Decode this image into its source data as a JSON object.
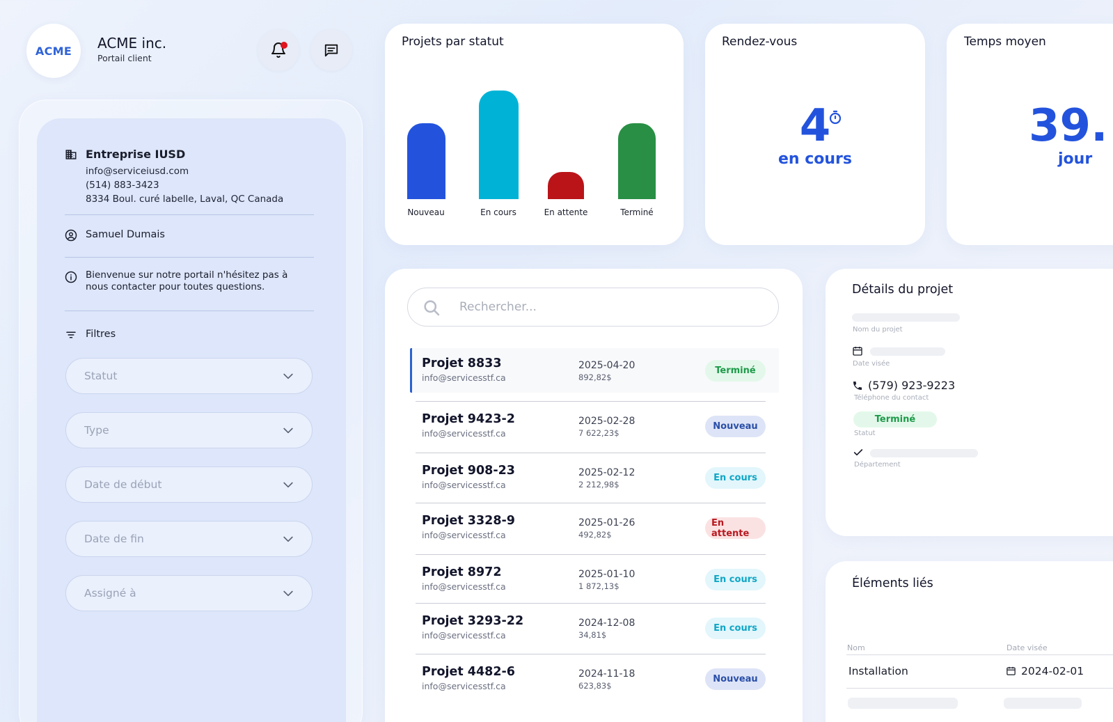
{
  "header": {
    "logo_text": "ACME",
    "company_name": "ACME inc.",
    "subtitle": "Portail client"
  },
  "sidebar": {
    "company": {
      "name": "Entreprise IUSD",
      "email": "info@serviceiusd.com",
      "phone": "(514) 883-3423",
      "address": "8334 Boul. curé labelle, Laval, QC Canada"
    },
    "user_name": "Samuel Dumais",
    "welcome_line1": "Bienvenue sur notre portail n'hésitez pas à",
    "welcome_line2": "nous contacter pour toutes questions.",
    "filters_label": "Filtres",
    "filters": [
      {
        "placeholder": "Statut"
      },
      {
        "placeholder": "Type"
      },
      {
        "placeholder": "Date de début"
      },
      {
        "placeholder": "Date de fin"
      },
      {
        "placeholder": "Assigné à"
      }
    ]
  },
  "status_card": {
    "title": "Projets par statut",
    "chart_data": {
      "type": "bar",
      "categories": [
        "Nouveau",
        "En cours",
        "En attente",
        "Terminé"
      ],
      "values": [
        110,
        158,
        39,
        110
      ],
      "colors": [
        "#2353dd",
        "#00b3d6",
        "#ba1419",
        "#288f44"
      ],
      "title": "Projets par statut",
      "xlabel": "",
      "ylabel": "",
      "ylim": [
        0,
        160
      ],
      "grid": false
    }
  },
  "appointments_card": {
    "title": "Rendez-vous",
    "value": "4",
    "label": "en cours"
  },
  "avg_time_card": {
    "title": "Temps moyen",
    "value": "39.",
    "label": "jour"
  },
  "search": {
    "placeholder": "Rechercher..."
  },
  "projects": [
    {
      "name": "Projet 8833",
      "email": "info@servicesstf.ca",
      "date": "2025-04-20",
      "amount": "892,82$",
      "status": "Terminé"
    },
    {
      "name": "Projet 9423-2",
      "email": "info@servicesstf.ca",
      "date": "2025-02-28",
      "amount": "7 622,23$",
      "status": "Nouveau"
    },
    {
      "name": "Projet 908-23",
      "email": "info@servicesstf.ca",
      "date": "2025-02-12",
      "amount": "2 212,98$",
      "status": "En cours"
    },
    {
      "name": "Projet 3328-9",
      "email": "info@servicesstf.ca",
      "date": "2025-01-26",
      "amount": "492,82$",
      "status": "En attente"
    },
    {
      "name": "Projet 8972",
      "email": "info@servicesstf.ca",
      "date": "2025-01-10",
      "amount": "1 872,13$",
      "status": "En cours"
    },
    {
      "name": "Projet 3293-22",
      "email": "info@servicesstf.ca",
      "date": "2024-12-08",
      "amount": "34,81$",
      "status": "En cours"
    },
    {
      "name": "Projet 4482-6",
      "email": "info@servicesstf.ca",
      "date": "2024-11-18",
      "amount": "623,83$",
      "status": "Nouveau"
    }
  ],
  "status_colors": {
    "Terminé": {
      "bg": "#e3f8ea",
      "fg": "#1e9a4a"
    },
    "Nouveau": {
      "bg": "#dee4f7",
      "fg": "#2a4fa8"
    },
    "En cours": {
      "bg": "#e2f6fb",
      "fg": "#11a6c6"
    },
    "En attente": {
      "bg": "#fbe2e2",
      "fg": "#b81921"
    }
  },
  "details": {
    "title": "Détails du projet",
    "project_name_label": "Nom du projet",
    "date_label": "Date visée",
    "phone": "(579) 923-9223",
    "phone_label": "Téléphone du contact",
    "status": "Terminé",
    "status_label": "Statut",
    "department_label": "Département"
  },
  "related": {
    "title": "Éléments liés",
    "col_name": "Nom",
    "col_date": "Date visée",
    "rows": [
      {
        "name": "Installation",
        "date": "2024-02-01"
      }
    ]
  }
}
